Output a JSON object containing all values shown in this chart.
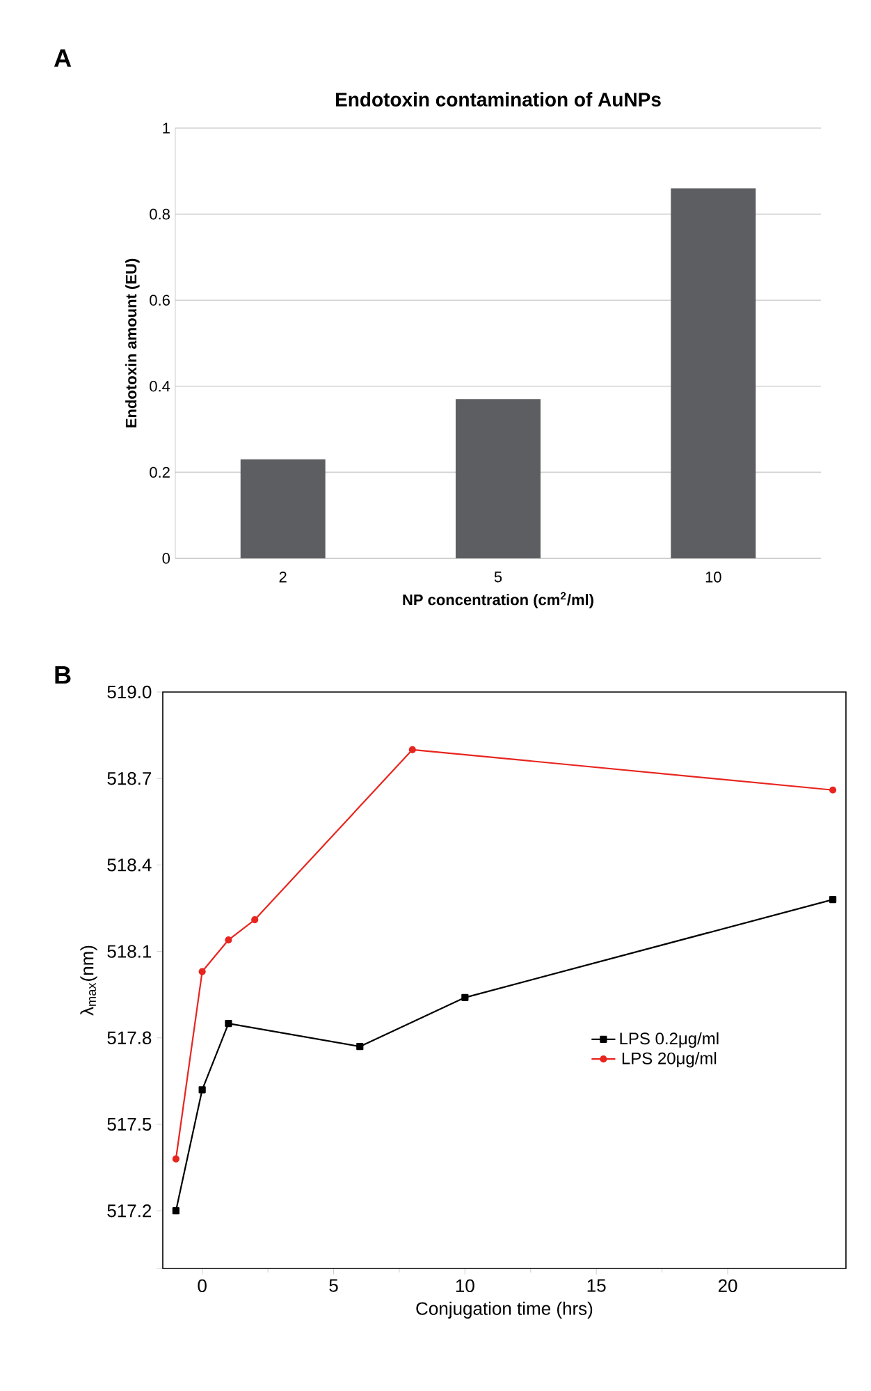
{
  "chart_data": [
    {
      "type": "bar",
      "title": "Endotoxin contamination of AuNPs",
      "xlabel": "NP concentration (cm$^{2}$/ml)",
      "ylabel": "Endotoxin amount (EU)",
      "annotations": [
        "A"
      ],
      "categories": [
        "2",
        "5",
        "10"
      ],
      "values": [
        0.23,
        0.37,
        0.86
      ],
      "color": "#5d5e62",
      "ylim": [
        0,
        1
      ],
      "yticks": [
        0,
        0.2,
        0.4,
        0.6,
        0.8,
        1
      ],
      "grid": "y"
    },
    {
      "type": "line",
      "xlabel": "Conjugation time (hrs)",
      "ylabel": "λ$_{max}$(nm)",
      "annotations": [
        "B"
      ],
      "series": [
        {
          "name": "LPS 0.2μg/ml",
          "color": "#000000",
          "marker": "square",
          "x": [
            -1,
            0,
            1,
            6,
            10,
            24
          ],
          "values": [
            517.2,
            517.62,
            517.85,
            517.77,
            517.94,
            518.28
          ]
        },
        {
          "name": "LPS 20μg/ml",
          "color": "#e8251f",
          "marker": "circle",
          "x": [
            -1,
            0,
            1,
            2,
            8,
            24
          ],
          "values": [
            517.38,
            518.03,
            518.14,
            518.21,
            518.8,
            518.66
          ]
        }
      ],
      "xlim": [
        -1.5,
        24.5
      ],
      "xticks": [
        0,
        5,
        10,
        15,
        20
      ],
      "ylim": [
        517.0,
        519.0
      ],
      "yticks": [
        {
          "value": 517.0,
          "label": null
        },
        {
          "value": 517.2,
          "label": "517.2"
        },
        {
          "value": 517.5,
          "label": "517.5"
        },
        {
          "value": 517.8,
          "label": "517.8"
        },
        {
          "value": 518.1,
          "label": "518.1"
        },
        {
          "value": 518.4,
          "label": "518.4"
        },
        {
          "value": 518.7,
          "label": "518.7"
        },
        {
          "value": 519.0,
          "label": "519.0"
        }
      ],
      "legend": "right",
      "grid": false
    }
  ]
}
